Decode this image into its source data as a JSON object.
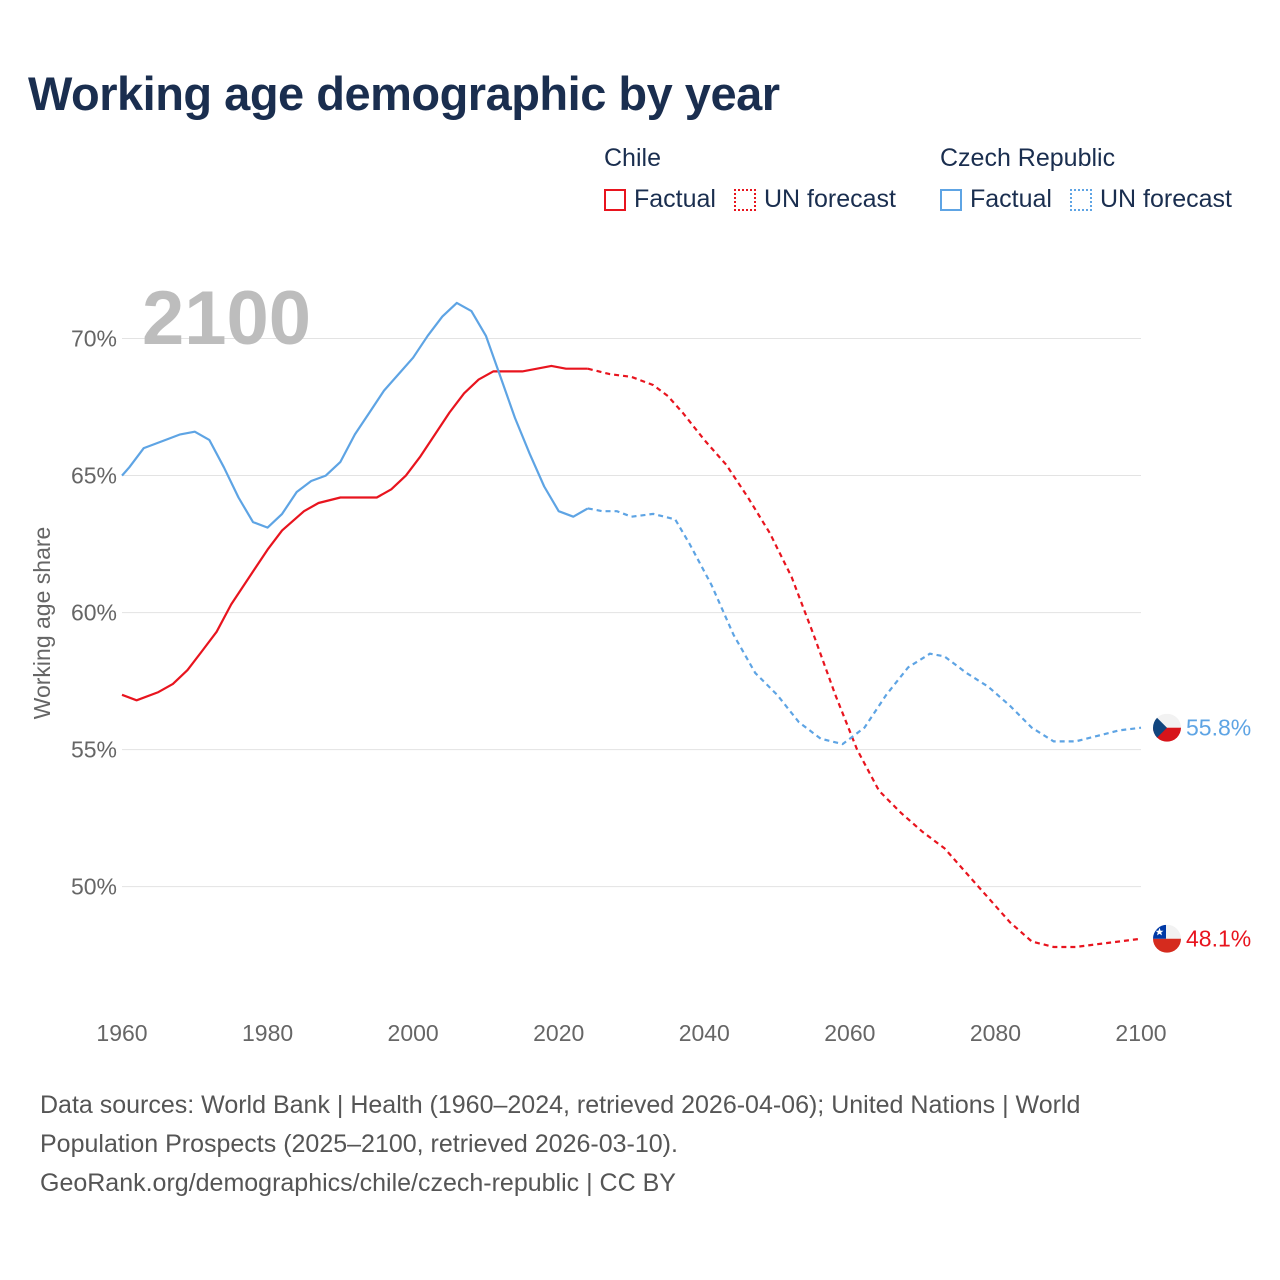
{
  "header": {
    "title": "Working age demographic by year"
  },
  "legend": {
    "groups": [
      {
        "name": "Chile",
        "color": "#e8141e",
        "factual_label": "Factual",
        "forecast_label": "UN forecast"
      },
      {
        "name": "Czech Republic",
        "color": "#5ea4e4",
        "factual_label": "Factual",
        "forecast_label": "UN forecast"
      }
    ]
  },
  "footer": {
    "sources": "Data sources: World Bank | Health (1960–2024, retrieved 2026-04-06); United Nations | World Population Prospects (2025–2100, retrieved 2026-03-10).",
    "link": "GeoRank.org/demographics/chile/czech-republic | CC BY"
  },
  "chart_data": {
    "type": "line",
    "title": "Working age demographic by year",
    "year_watermark": "2100",
    "xlabel": "",
    "ylabel": "Working age share",
    "xlim": [
      1960,
      2100
    ],
    "ylim": [
      45.5,
      72.5
    ],
    "x_ticks": [
      1960,
      1980,
      2000,
      2020,
      2040,
      2060,
      2080,
      2100
    ],
    "y_ticks": [
      50,
      55,
      60,
      65,
      70
    ],
    "y_tick_labels": [
      "50%",
      "55%",
      "60%",
      "65%",
      "70%"
    ],
    "grid": true,
    "forecast_start_year": 2024,
    "series": [
      {
        "name": "Chile",
        "color": "#e8141e",
        "end_label": "48.1%",
        "flag": "chile-flag",
        "points": [
          [
            1960,
            57.0
          ],
          [
            1962,
            56.8
          ],
          [
            1965,
            57.1
          ],
          [
            1967,
            57.4
          ],
          [
            1969,
            57.9
          ],
          [
            1971,
            58.6
          ],
          [
            1973,
            59.3
          ],
          [
            1975,
            60.3
          ],
          [
            1978,
            61.5
          ],
          [
            1980,
            62.3
          ],
          [
            1982,
            63.0
          ],
          [
            1985,
            63.7
          ],
          [
            1987,
            64.0
          ],
          [
            1990,
            64.2
          ],
          [
            1992,
            64.2
          ],
          [
            1995,
            64.2
          ],
          [
            1997,
            64.5
          ],
          [
            1999,
            65.0
          ],
          [
            2001,
            65.7
          ],
          [
            2003,
            66.5
          ],
          [
            2005,
            67.3
          ],
          [
            2007,
            68.0
          ],
          [
            2009,
            68.5
          ],
          [
            2011,
            68.8
          ],
          [
            2013,
            68.8
          ],
          [
            2015,
            68.8
          ],
          [
            2017,
            68.9
          ],
          [
            2019,
            69.0
          ],
          [
            2021,
            68.9
          ],
          [
            2024,
            68.9
          ],
          [
            2027,
            68.7
          ],
          [
            2030,
            68.6
          ],
          [
            2033,
            68.3
          ],
          [
            2035,
            67.9
          ],
          [
            2037,
            67.3
          ],
          [
            2040,
            66.3
          ],
          [
            2043,
            65.4
          ],
          [
            2046,
            64.2
          ],
          [
            2049,
            62.9
          ],
          [
            2052,
            61.3
          ],
          [
            2055,
            59.2
          ],
          [
            2058,
            57.0
          ],
          [
            2061,
            55.0
          ],
          [
            2064,
            53.5
          ],
          [
            2067,
            52.7
          ],
          [
            2070,
            52.0
          ],
          [
            2073,
            51.4
          ],
          [
            2076,
            50.5
          ],
          [
            2079,
            49.6
          ],
          [
            2082,
            48.7
          ],
          [
            2085,
            48.0
          ],
          [
            2088,
            47.8
          ],
          [
            2091,
            47.8
          ],
          [
            2094,
            47.9
          ],
          [
            2097,
            48.0
          ],
          [
            2100,
            48.1
          ]
        ]
      },
      {
        "name": "Czech Republic",
        "color": "#5ea4e4",
        "end_label": "55.8%",
        "flag": "czech-flag",
        "points": [
          [
            1960,
            65.0
          ],
          [
            1961,
            65.3
          ],
          [
            1963,
            66.0
          ],
          [
            1966,
            66.3
          ],
          [
            1968,
            66.5
          ],
          [
            1970,
            66.6
          ],
          [
            1972,
            66.3
          ],
          [
            1974,
            65.3
          ],
          [
            1976,
            64.2
          ],
          [
            1978,
            63.3
          ],
          [
            1980,
            63.1
          ],
          [
            1982,
            63.6
          ],
          [
            1984,
            64.4
          ],
          [
            1986,
            64.8
          ],
          [
            1988,
            65.0
          ],
          [
            1990,
            65.5
          ],
          [
            1992,
            66.5
          ],
          [
            1994,
            67.3
          ],
          [
            1996,
            68.1
          ],
          [
            1998,
            68.7
          ],
          [
            2000,
            69.3
          ],
          [
            2002,
            70.1
          ],
          [
            2004,
            70.8
          ],
          [
            2006,
            71.3
          ],
          [
            2008,
            71.0
          ],
          [
            2010,
            70.1
          ],
          [
            2012,
            68.6
          ],
          [
            2014,
            67.1
          ],
          [
            2016,
            65.8
          ],
          [
            2018,
            64.6
          ],
          [
            2020,
            63.7
          ],
          [
            2022,
            63.5
          ],
          [
            2024,
            63.8
          ],
          [
            2026,
            63.7
          ],
          [
            2028,
            63.7
          ],
          [
            2030,
            63.5
          ],
          [
            2033,
            63.6
          ],
          [
            2036,
            63.4
          ],
          [
            2038,
            62.5
          ],
          [
            2041,
            61.0
          ],
          [
            2044,
            59.2
          ],
          [
            2047,
            57.8
          ],
          [
            2050,
            57.0
          ],
          [
            2053,
            56.0
          ],
          [
            2056,
            55.4
          ],
          [
            2059,
            55.2
          ],
          [
            2062,
            55.8
          ],
          [
            2065,
            57.0
          ],
          [
            2068,
            58.0
          ],
          [
            2071,
            58.5
          ],
          [
            2073,
            58.4
          ],
          [
            2076,
            57.8
          ],
          [
            2079,
            57.3
          ],
          [
            2082,
            56.6
          ],
          [
            2085,
            55.8
          ],
          [
            2088,
            55.3
          ],
          [
            2091,
            55.3
          ],
          [
            2094,
            55.5
          ],
          [
            2097,
            55.7
          ],
          [
            2100,
            55.8
          ]
        ]
      }
    ]
  }
}
